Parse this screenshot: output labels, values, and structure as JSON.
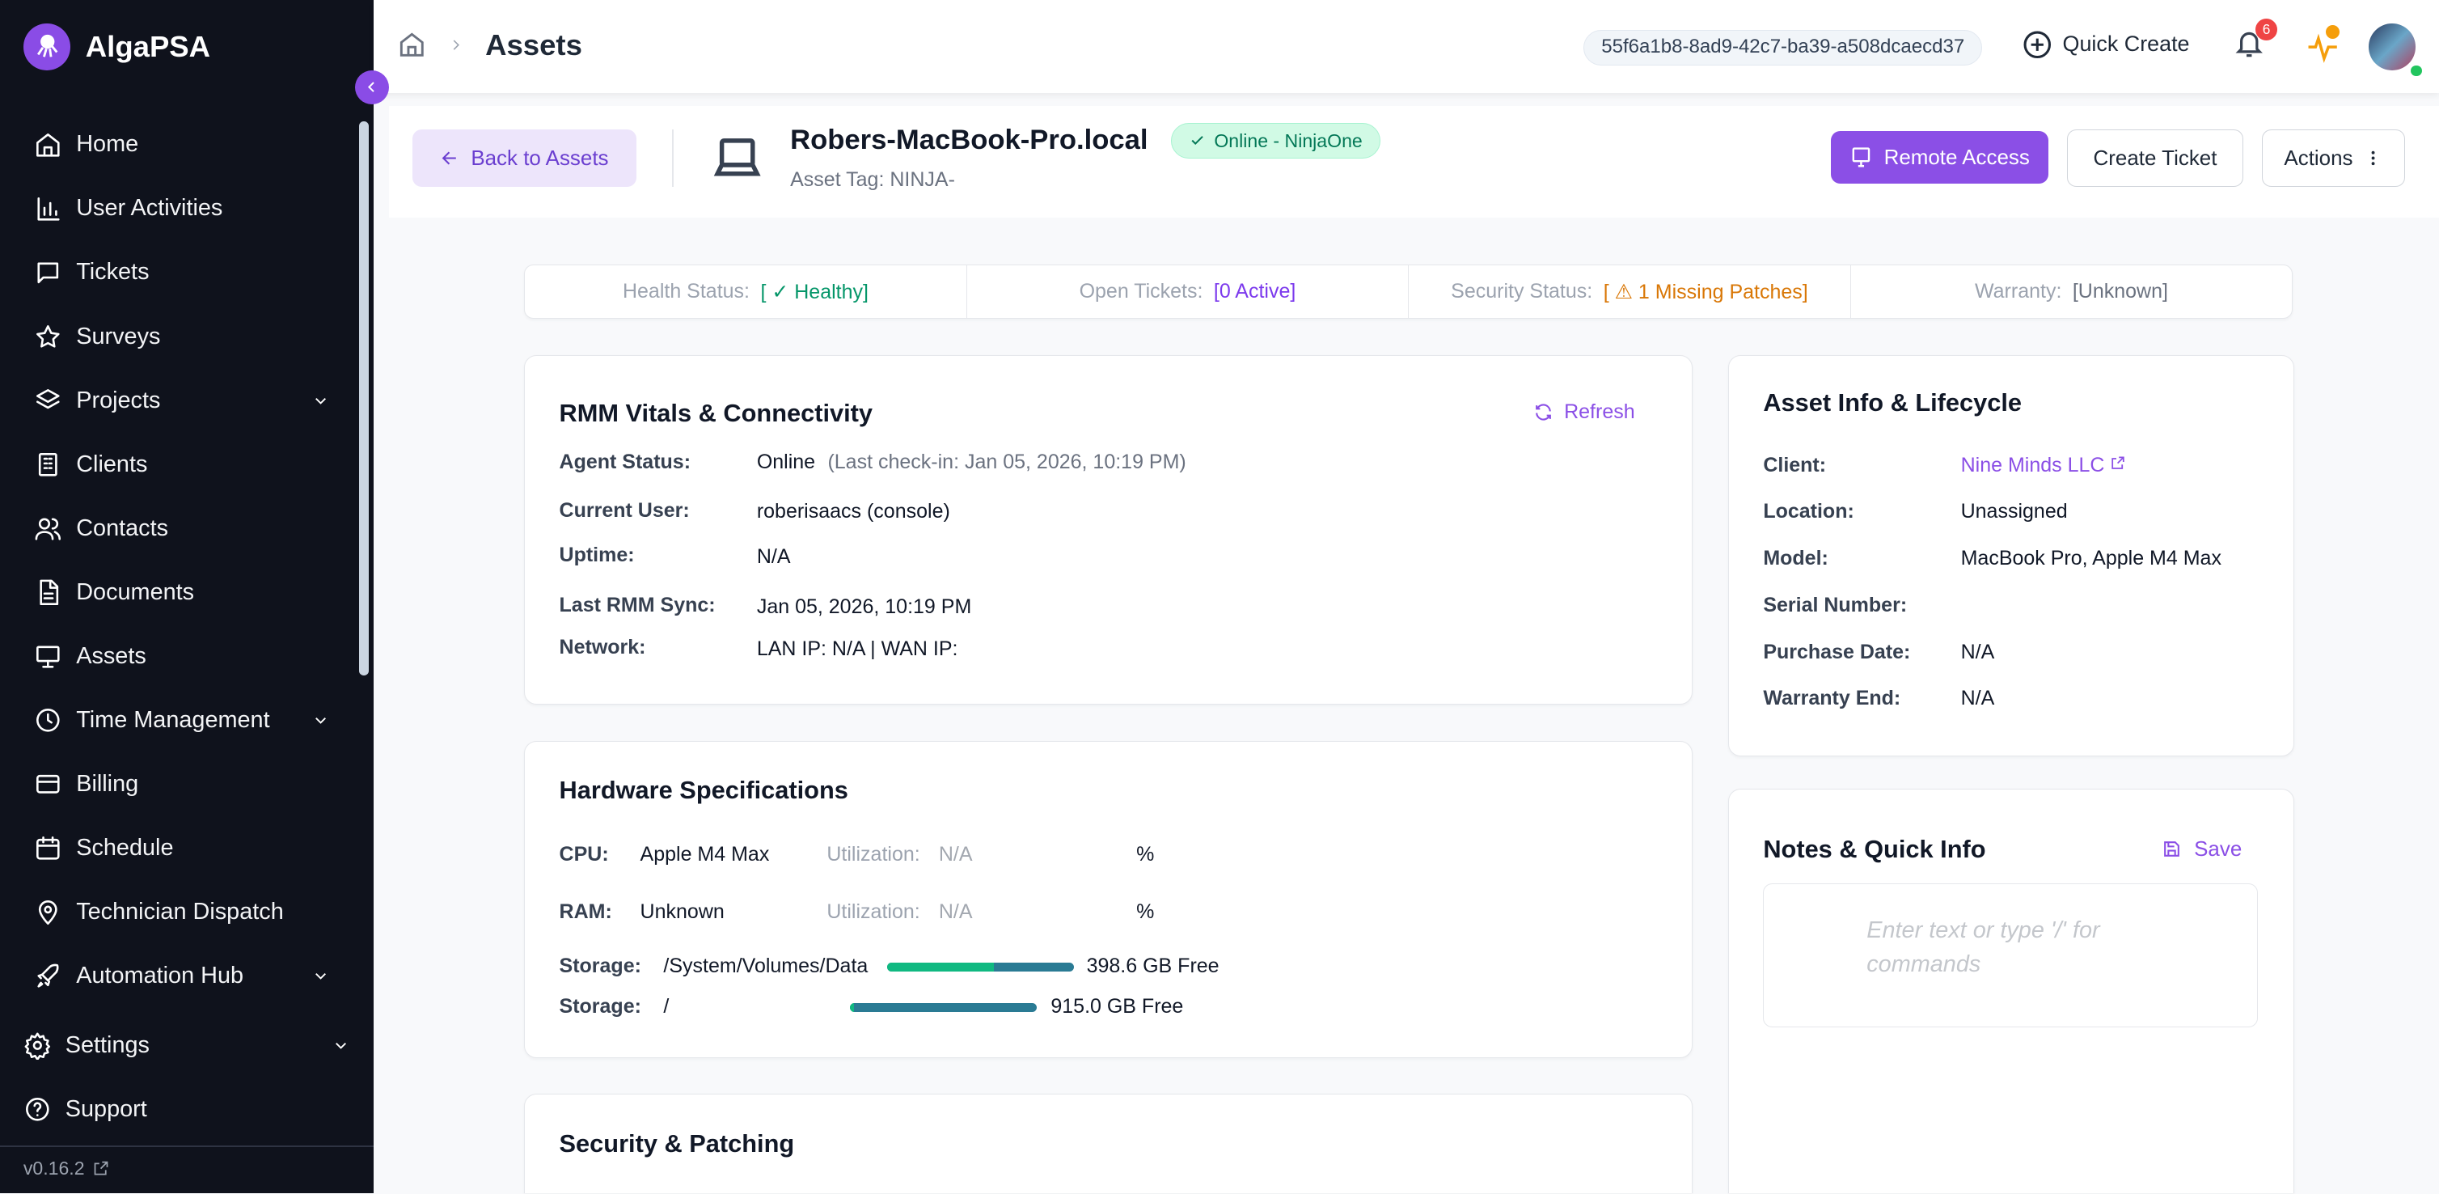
{
  "app": {
    "name": "AlgaPSA",
    "version": "v0.16.2",
    "brand_color": "#8a4ce6"
  },
  "sidebar": {
    "items": [
      {
        "label": "Home",
        "icon": "home-icon"
      },
      {
        "label": "User Activities",
        "icon": "bar-chart-icon"
      },
      {
        "label": "Tickets",
        "icon": "message-square-icon"
      },
      {
        "label": "Surveys",
        "icon": "star-icon"
      },
      {
        "label": "Projects",
        "icon": "layers-icon",
        "expandable": true
      },
      {
        "label": "Clients",
        "icon": "building-icon"
      },
      {
        "label": "Contacts",
        "icon": "users-icon"
      },
      {
        "label": "Documents",
        "icon": "file-icon"
      },
      {
        "label": "Assets",
        "icon": "monitor-icon",
        "active": true
      },
      {
        "label": "Time Management",
        "icon": "clock-icon",
        "expandable": true
      },
      {
        "label": "Billing",
        "icon": "credit-card-icon"
      },
      {
        "label": "Schedule",
        "icon": "calendar-icon"
      },
      {
        "label": "Technician Dispatch",
        "icon": "map-pin-icon"
      },
      {
        "label": "Automation Hub",
        "icon": "rocket-icon",
        "expandable": true
      }
    ],
    "bottom": [
      {
        "label": "Settings",
        "icon": "gear-icon",
        "expandable": true
      },
      {
        "label": "Support",
        "icon": "help-circle-icon"
      }
    ]
  },
  "header": {
    "breadcrumb": "Assets",
    "tenant_id": "55f6a1b8-8ad9-42c7-ba39-a508dcaecd37",
    "quick_create": "Quick Create",
    "notification_count": "6"
  },
  "asset": {
    "back_label": "Back to Assets",
    "name": "Robers-MacBook-Pro.local",
    "status_badge": "Online - NinjaOne",
    "asset_tag": "Asset Tag: NINJA-",
    "remote_access": "Remote Access",
    "create_ticket": "Create Ticket",
    "actions": "Actions"
  },
  "status_bar": [
    {
      "label": "Health Status:",
      "value": "[ ✓ Healthy]",
      "color": "#059669"
    },
    {
      "label": "Open Tickets:",
      "value": "[0 Active]",
      "color": "#7c3aed"
    },
    {
      "label": "Security Status:",
      "value": "[ ⚠ 1 Missing Patches]",
      "color": "#d97706"
    },
    {
      "label": "Warranty:",
      "value": "[Unknown]",
      "color": "#6b7280"
    }
  ],
  "rmm": {
    "title": "RMM Vitals & Connectivity",
    "refresh": "Refresh",
    "rows": [
      {
        "label": "Agent Status:",
        "value": "Online",
        "note": "(Last check-in: Jan 05, 2026, 10:19 PM)"
      },
      {
        "label": "Current User:",
        "value": "roberisaacs (console)"
      },
      {
        "label": "Uptime:",
        "value": "N/A"
      },
      {
        "label": "Last RMM Sync:",
        "value": "Jan 05, 2026, 10:19 PM"
      },
      {
        "label": "Network:",
        "value": "LAN IP: N/A | WAN IP:"
      }
    ]
  },
  "hardware": {
    "title": "Hardware Specifications",
    "cpu": {
      "label": "CPU:",
      "value": "Apple M4 Max",
      "util_label": "Utilization:",
      "util_value": "N/A",
      "unit": "%"
    },
    "ram": {
      "label": "RAM:",
      "value": "Unknown",
      "util_label": "Utilization:",
      "util_value": "N/A",
      "unit": "%"
    },
    "storage": [
      {
        "label": "Storage:",
        "path": "/System/Volumes/Data",
        "free": "398.6 GB Free",
        "used_fraction": 0.57
      },
      {
        "label": "Storage:",
        "path": "/",
        "free": "915.0 GB Free",
        "used_fraction": 0.02
      }
    ]
  },
  "security": {
    "title": "Security & Patching"
  },
  "asset_info": {
    "title": "Asset Info & Lifecycle",
    "rows": [
      {
        "label": "Client:",
        "value": "Nine Minds LLC",
        "link": true
      },
      {
        "label": "Location:",
        "value": "Unassigned"
      },
      {
        "label": "Model:",
        "value": "MacBook Pro, Apple M4 Max"
      },
      {
        "label": "Serial Number:",
        "value": ""
      },
      {
        "label": "Purchase Date:",
        "value": "N/A"
      },
      {
        "label": "Warranty End:",
        "value": "N/A"
      }
    ]
  },
  "notes": {
    "title": "Notes & Quick Info",
    "save": "Save",
    "placeholder": "Enter text or type '/' for commands"
  }
}
